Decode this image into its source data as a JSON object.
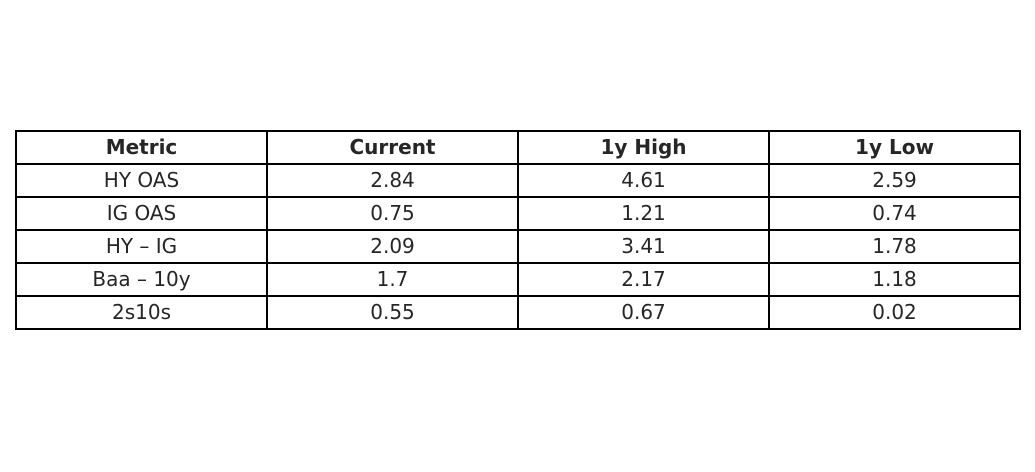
{
  "chart_data": {
    "type": "table",
    "columns": [
      "Metric",
      "Current",
      "1y High",
      "1y Low"
    ],
    "rows": [
      [
        "HY OAS",
        "2.84",
        "4.61",
        "2.59"
      ],
      [
        "IG OAS",
        "0.75",
        "1.21",
        "0.74"
      ],
      [
        "HY – IG",
        "2.09",
        "3.41",
        "1.78"
      ],
      [
        "Baa – 10y",
        "1.7",
        "2.17",
        "1.18"
      ],
      [
        "2s10s",
        "0.55",
        "0.67",
        "0.02"
      ]
    ]
  },
  "colors": {
    "text": "#262626",
    "border": "#000000",
    "background": "#ffffff"
  }
}
